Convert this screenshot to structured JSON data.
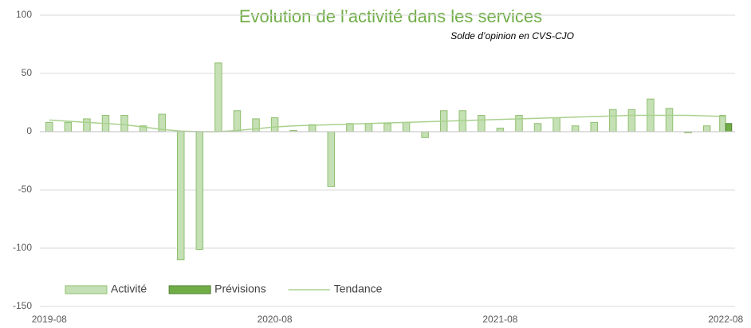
{
  "chart_data": {
    "type": "bar",
    "title": "Evolution de l’activité dans les services",
    "subtitle": "Solde d’opinion en CVS-CJO",
    "categories": [
      "2019-08",
      null,
      null,
      null,
      null,
      null,
      null,
      null,
      null,
      null,
      null,
      null,
      "2020-08",
      null,
      null,
      null,
      null,
      null,
      null,
      null,
      null,
      null,
      null,
      null,
      "2021-08",
      null,
      null,
      null,
      null,
      null,
      null,
      null,
      null,
      null,
      null,
      null,
      "2022-08"
    ],
    "series": [
      {
        "name": "Activité",
        "kind": "bar",
        "color": "#c5e0b4",
        "values": [
          8,
          8,
          11,
          14,
          14,
          5,
          15,
          -110,
          -101,
          59,
          18,
          11,
          12,
          1,
          6,
          -47,
          7,
          7,
          7,
          8,
          -5,
          18,
          18,
          14,
          3,
          14,
          7,
          12,
          5,
          8,
          19,
          19,
          28,
          20,
          -1,
          5,
          14
        ]
      },
      {
        "name": "Prévisions",
        "kind": "bar",
        "color": "#70ad47",
        "values": [
          null,
          null,
          null,
          null,
          null,
          null,
          null,
          null,
          null,
          null,
          null,
          null,
          null,
          null,
          null,
          null,
          null,
          null,
          null,
          null,
          null,
          null,
          null,
          null,
          null,
          null,
          null,
          null,
          null,
          null,
          null,
          null,
          null,
          null,
          null,
          null,
          7
        ]
      },
      {
        "name": "Tendance",
        "kind": "line",
        "color": "#a9d18e",
        "values": [
          10,
          9,
          8,
          7,
          6,
          4,
          2,
          0.5,
          0,
          0,
          1,
          2.5,
          4,
          5,
          5.5,
          6,
          6.5,
          7,
          7.5,
          8,
          8.5,
          9,
          9.5,
          10,
          10.5,
          11,
          11.5,
          12,
          12.5,
          13,
          13.5,
          14,
          14,
          14,
          14,
          13.5,
          13
        ]
      }
    ],
    "ylim": [
      -150,
      100
    ],
    "yticks": [
      -150,
      -100,
      -50,
      0,
      50,
      100
    ],
    "grid": true,
    "legend": "bottom-left"
  }
}
